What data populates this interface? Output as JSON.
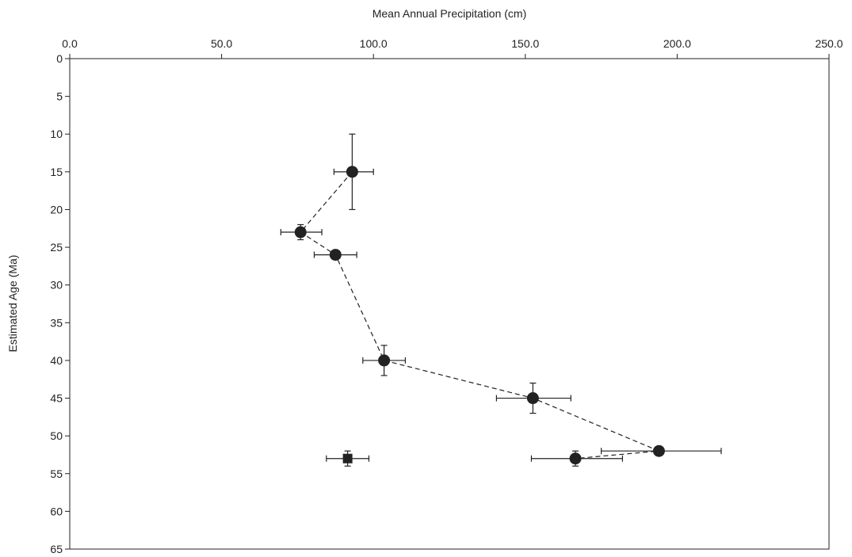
{
  "chart_data": {
    "type": "scatter",
    "title": "",
    "xlabel": "Mean Annual Precipitation (cm)",
    "ylabel": "Estimated Age (Ma)",
    "x_axis_position": "top",
    "y_axis_inverted": true,
    "xlim": [
      0,
      250
    ],
    "ylim": [
      0,
      65
    ],
    "x_ticks": [
      "0.0",
      "50.0",
      "100.0",
      "150.0",
      "200.0",
      "250.0"
    ],
    "x_tick_values": [
      0,
      50,
      100,
      150,
      200,
      250
    ],
    "y_ticks": [
      "0",
      "5",
      "10",
      "15",
      "20",
      "25",
      "30",
      "35",
      "40",
      "45",
      "50",
      "55",
      "60",
      "65"
    ],
    "y_tick_values": [
      0,
      5,
      10,
      15,
      20,
      25,
      30,
      35,
      40,
      45,
      50,
      55,
      60,
      65
    ],
    "grid": false,
    "legend": "none",
    "series": [
      {
        "marker": "circle",
        "line": "dashed",
        "color": "#222222",
        "points": [
          {
            "x": 93.0,
            "y": 15,
            "x_err": [
              87.0,
              100.0
            ],
            "y_err": [
              10,
              20
            ]
          },
          {
            "x": 76.0,
            "y": 23,
            "x_err": [
              69.5,
              83.0
            ],
            "y_err": [
              22,
              24
            ]
          },
          {
            "x": 87.5,
            "y": 26,
            "x_err": [
              80.5,
              94.5
            ],
            "y_err": [
              25.5,
              26.5
            ]
          },
          {
            "x": 103.5,
            "y": 40,
            "x_err": [
              96.5,
              110.5
            ],
            "y_err": [
              38,
              42
            ]
          },
          {
            "x": 152.5,
            "y": 45,
            "x_err": [
              140.5,
              165.0
            ],
            "y_err": [
              43,
              47
            ]
          },
          {
            "x": 194.0,
            "y": 52,
            "x_err": [
              175.0,
              214.5
            ],
            "y_err": [
              51.7,
              52.3
            ]
          },
          {
            "x": 166.5,
            "y": 53,
            "x_err": [
              152.0,
              182.0
            ],
            "y_err": [
              52,
              54
            ]
          }
        ]
      },
      {
        "marker": "square",
        "line": "none",
        "color": "#222222",
        "points": [
          {
            "x": 91.5,
            "y": 53,
            "x_err": [
              84.5,
              98.5
            ],
            "y_err": [
              52,
              54
            ]
          }
        ]
      }
    ]
  }
}
